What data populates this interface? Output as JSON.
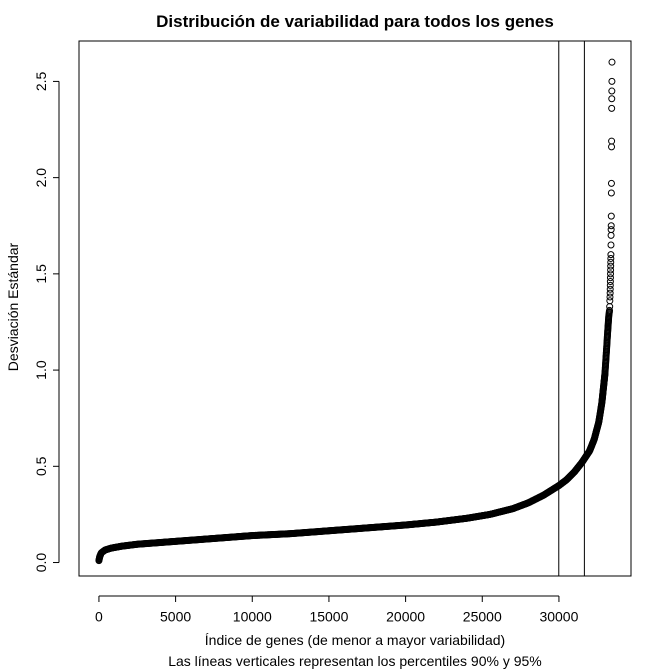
{
  "chart_data": {
    "type": "scatter",
    "title": "Distribución de variabilidad para todos los genes",
    "xlabel": "Índice de genes (de menor a mayor variabilidad)",
    "subtitle": "Las líneas verticales representan los percentiles 90% y 95%",
    "ylabel": "Desviación Estándar",
    "xlim": [
      -1300,
      34700
    ],
    "ylim": [
      -0.07,
      2.71
    ],
    "xticks": [
      0,
      5000,
      10000,
      15000,
      20000,
      25000,
      30000
    ],
    "xtick_labels": [
      "0",
      "5000",
      "10000",
      "15000",
      "20000",
      "25000",
      "30000"
    ],
    "yticks": [
      0.0,
      0.5,
      1.0,
      1.5,
      2.0,
      2.5
    ],
    "ytick_labels": [
      "0.0",
      "0.5",
      "1.0",
      "1.5",
      "2.0",
      "2.5"
    ],
    "vlines": [
      29990,
      31660
    ],
    "vline_labels": [
      "percentil 90%",
      "percentil 95%"
    ],
    "curve_points": [
      [
        0,
        0.01
      ],
      [
        50,
        0.03
      ],
      [
        150,
        0.05
      ],
      [
        400,
        0.065
      ],
      [
        800,
        0.075
      ],
      [
        1500,
        0.085
      ],
      [
        2500,
        0.095
      ],
      [
        5000,
        0.11
      ],
      [
        7500,
        0.125
      ],
      [
        10000,
        0.14
      ],
      [
        12500,
        0.15
      ],
      [
        15000,
        0.165
      ],
      [
        17500,
        0.18
      ],
      [
        20000,
        0.195
      ],
      [
        22000,
        0.21
      ],
      [
        24000,
        0.23
      ],
      [
        25500,
        0.25
      ],
      [
        27000,
        0.28
      ],
      [
        28000,
        0.31
      ],
      [
        29000,
        0.35
      ],
      [
        30000,
        0.4
      ],
      [
        30500,
        0.43
      ],
      [
        31000,
        0.47
      ],
      [
        31500,
        0.52
      ],
      [
        32000,
        0.58
      ],
      [
        32300,
        0.64
      ],
      [
        32600,
        0.73
      ],
      [
        32800,
        0.83
      ],
      [
        33000,
        0.98
      ],
      [
        33100,
        1.1
      ],
      [
        33180,
        1.2
      ],
      [
        33250,
        1.28
      ],
      [
        33300,
        1.31
      ]
    ],
    "outlier_points": [
      [
        33310,
        1.33
      ],
      [
        33320,
        1.36
      ],
      [
        33330,
        1.38
      ],
      [
        33340,
        1.4
      ],
      [
        33345,
        1.42
      ],
      [
        33350,
        1.44
      ],
      [
        33355,
        1.46
      ],
      [
        33360,
        1.48
      ],
      [
        33365,
        1.5
      ],
      [
        33370,
        1.52
      ],
      [
        33375,
        1.54
      ],
      [
        33380,
        1.56
      ],
      [
        33385,
        1.58
      ],
      [
        33390,
        1.6
      ],
      [
        33395,
        1.65
      ],
      [
        33400,
        1.7
      ],
      [
        33405,
        1.73
      ],
      [
        33410,
        1.75
      ],
      [
        33415,
        1.8
      ],
      [
        33420,
        1.92
      ],
      [
        33425,
        1.97
      ],
      [
        33430,
        2.16
      ],
      [
        33435,
        2.19
      ],
      [
        33440,
        2.36
      ],
      [
        33445,
        2.41
      ],
      [
        33450,
        2.45
      ],
      [
        33455,
        2.5
      ],
      [
        33460,
        2.6
      ]
    ],
    "grid": false,
    "marker": "open-circle",
    "color": "#000000"
  }
}
